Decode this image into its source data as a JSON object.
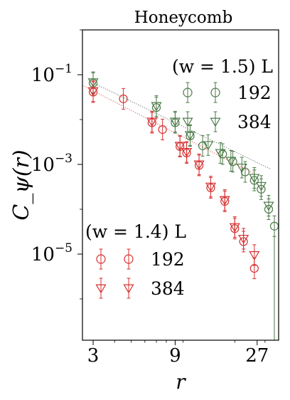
{
  "chart_data": {
    "type": "scatter",
    "title": "Honeycomb",
    "xlabel": "r",
    "ylabel": "C_ψ(r)",
    "xscale": "log",
    "yscale": "log",
    "xlim": [
      2.6,
      36
    ],
    "ylim": [
      1.2e-07,
      1.0
    ],
    "xticks": [
      {
        "value": 3,
        "label": "3"
      },
      {
        "value": 9,
        "label": "9"
      },
      {
        "value": 27,
        "label": "27"
      }
    ],
    "yticks": [
      {
        "value": 0.1,
        "base": "10",
        "exp": "−1"
      },
      {
        "value": 0.001,
        "base": "10",
        "exp": "−3"
      },
      {
        "value": 1e-05,
        "base": "10",
        "exp": "−5"
      }
    ],
    "grid": false,
    "legends": [
      {
        "title": "(w = 1.5) L",
        "placement": "top-right",
        "entries": [
          {
            "label": "192",
            "marker": "circle",
            "color": "#4b7a47"
          },
          {
            "label": "384",
            "marker": "triangle-down",
            "color": "#4b7a47"
          }
        ]
      },
      {
        "title": "(w = 1.4) L",
        "placement": "bottom-left",
        "entries": [
          {
            "label": "192",
            "marker": "circle",
            "color": "#d62f2f"
          },
          {
            "label": "384",
            "marker": "triangle-down",
            "color": "#d62f2f"
          }
        ]
      }
    ],
    "series": [
      {
        "name": "192",
        "group": "(w = 1.5)",
        "marker": "circle",
        "color": "#4b7a47",
        "points": [
          {
            "x": 3.0,
            "y": 0.065
          },
          {
            "x": 7.0,
            "y": 0.0185
          },
          {
            "x": 9.0,
            "y": 0.0085
          },
          {
            "x": 11.0,
            "y": 0.0043
          },
          {
            "x": 13.0,
            "y": 0.0026
          },
          {
            "x": 17.0,
            "y": 0.0017
          },
          {
            "x": 19.5,
            "y": 0.00115
          },
          {
            "x": 23.0,
            "y": 0.00068
          },
          {
            "x": 26.0,
            "y": 0.00044
          },
          {
            "x": 28.5,
            "y": 0.00028
          },
          {
            "x": 31.5,
            "y": 0.0001
          },
          {
            "x": 34.0,
            "y": 4.2e-05
          }
        ]
      },
      {
        "name": "384",
        "group": "(w = 1.5)",
        "marker": "triangle-down",
        "color": "#4b7a47",
        "points": [
          {
            "x": 3.0,
            "y": 0.068
          },
          {
            "x": 7.0,
            "y": 0.02
          },
          {
            "x": 9.0,
            "y": 0.009
          },
          {
            "x": 11.0,
            "y": 0.0045
          },
          {
            "x": 14.0,
            "y": 0.0027
          },
          {
            "x": 16.5,
            "y": 0.0018
          },
          {
            "x": 19.0,
            "y": 0.0012
          },
          {
            "x": 22.0,
            "y": 0.00085
          },
          {
            "x": 26.0,
            "y": 0.0005
          },
          {
            "x": 28.5,
            "y": 0.00033
          },
          {
            "x": 31.5,
            "y": 0.00012
          }
        ]
      },
      {
        "name": "192",
        "group": "(w = 1.4)",
        "marker": "circle",
        "color": "#d62f2f",
        "points": [
          {
            "x": 3.0,
            "y": 0.041
          },
          {
            "x": 4.5,
            "y": 0.029
          },
          {
            "x": 6.6,
            "y": 0.0085
          },
          {
            "x": 7.6,
            "y": 0.006
          },
          {
            "x": 9.6,
            "y": 0.0025
          },
          {
            "x": 10.5,
            "y": 0.0018
          },
          {
            "x": 12.4,
            "y": 0.00095
          },
          {
            "x": 14.5,
            "y": 0.0003
          },
          {
            "x": 17.5,
            "y": 0.00015
          },
          {
            "x": 20.0,
            "y": 3.7e-05
          },
          {
            "x": 22.5,
            "y": 1.9e-05
          },
          {
            "x": 26.0,
            "y": 4.8e-06
          }
        ]
      },
      {
        "name": "384",
        "group": "(w = 1.4)",
        "marker": "triangle-down",
        "color": "#d62f2f",
        "points": [
          {
            "x": 3.0,
            "y": 0.043
          },
          {
            "x": 6.6,
            "y": 0.009
          },
          {
            "x": 9.6,
            "y": 0.0026
          },
          {
            "x": 10.5,
            "y": 0.0019
          },
          {
            "x": 12.4,
            "y": 0.001
          },
          {
            "x": 14.5,
            "y": 0.00032
          },
          {
            "x": 17.5,
            "y": 0.00016
          },
          {
            "x": 20.0,
            "y": 4e-05
          },
          {
            "x": 22.5,
            "y": 2.2e-05
          },
          {
            "x": 26.0,
            "y": 9.5e-06
          }
        ]
      }
    ],
    "fit_lines": [
      {
        "group": "(w = 1.5)",
        "style": "dotted",
        "color": "#666666",
        "from": {
          "x": 3.0,
          "y": 0.066
        },
        "to": {
          "x": 32.5,
          "y": 0.00078
        }
      },
      {
        "group": "(w = 1.4)",
        "style": "dotted",
        "color": "#e05050",
        "from": {
          "x": 2.6,
          "y": 0.058
        },
        "to": {
          "x": 26.0,
          "y": 0.00062
        }
      }
    ]
  }
}
